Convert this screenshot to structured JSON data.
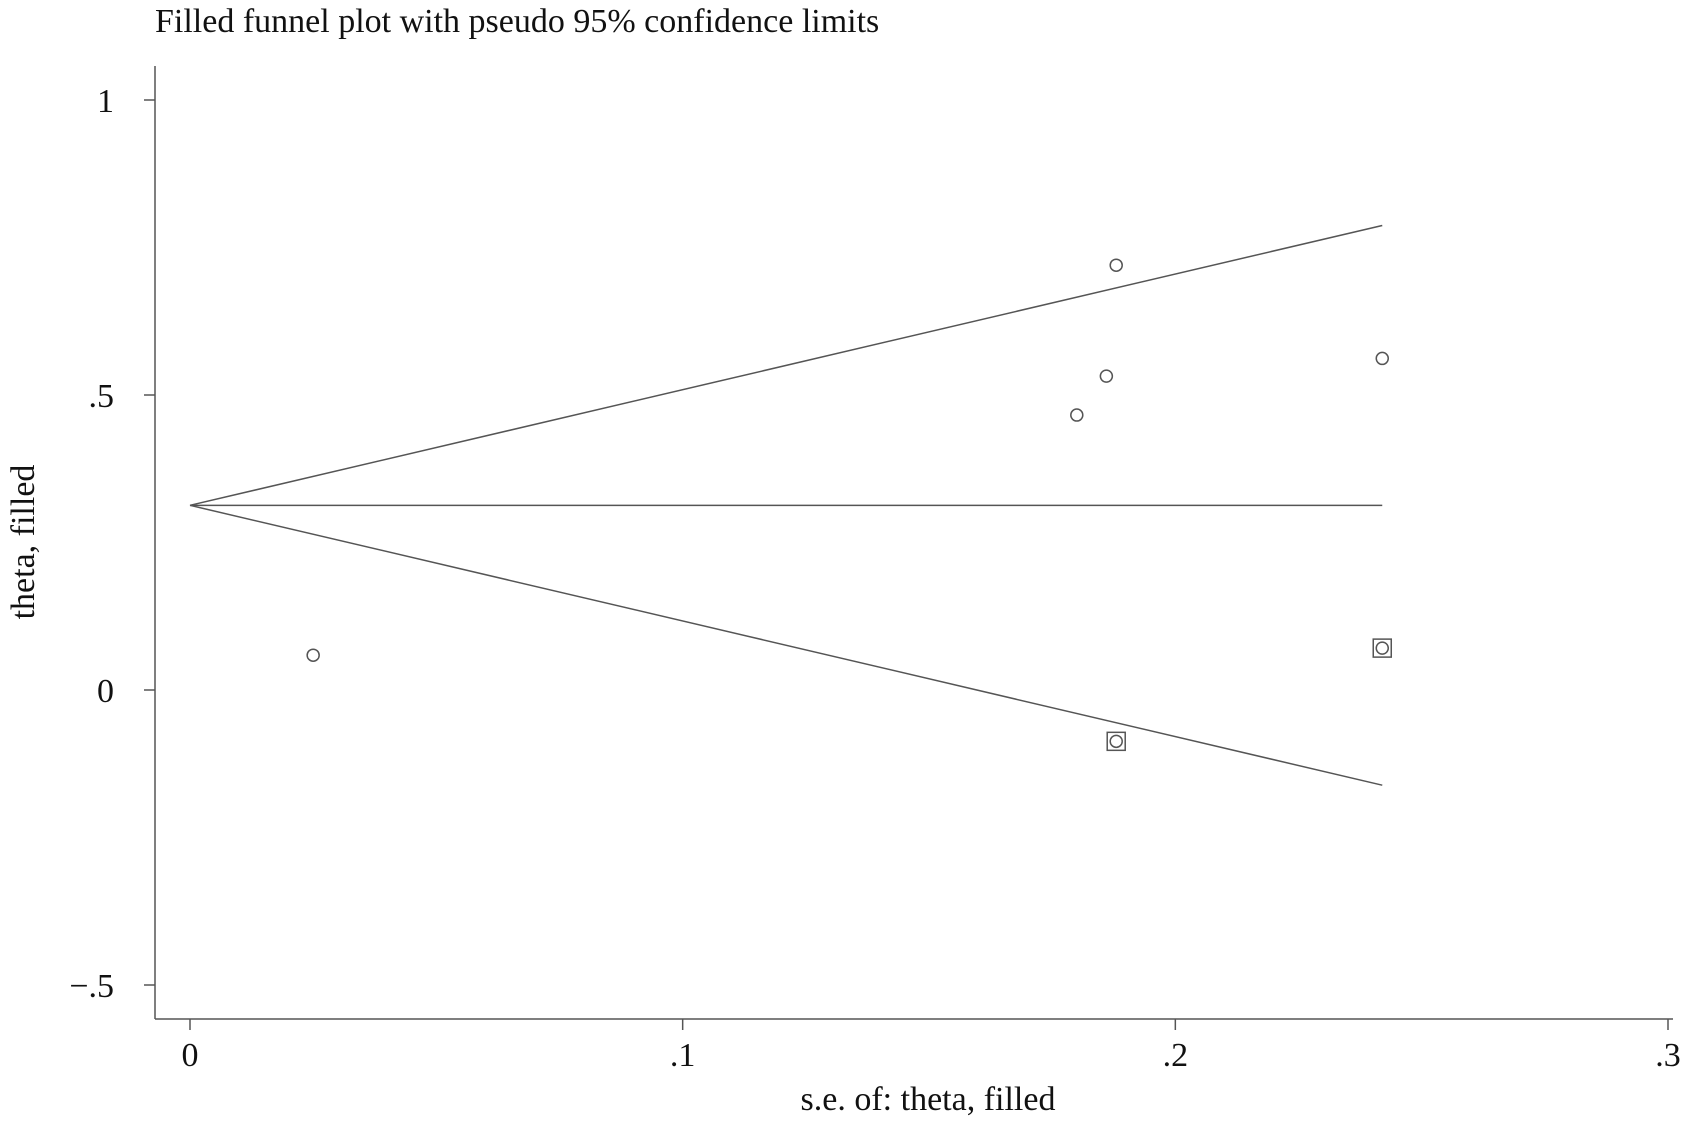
{
  "chart_data": {
    "type": "scatter",
    "title": "Filled funnel plot with pseudo 95% confidence limits",
    "xlabel": "s.e. of: theta, filled",
    "ylabel": "theta, filled",
    "xlim": [
      0,
      0.3
    ],
    "ylim": [
      -0.5,
      1
    ],
    "x_ticks": [
      {
        "value": 0,
        "label": "0"
      },
      {
        "value": 0.1,
        "label": ".1"
      },
      {
        "value": 0.2,
        "label": ".2"
      },
      {
        "value": 0.3,
        "label": ".3"
      }
    ],
    "y_ticks": [
      {
        "value": -0.5,
        "label": "−.5"
      },
      {
        "value": 0,
        "label": "0"
      },
      {
        "value": 0.5,
        "label": ".5"
      },
      {
        "value": 1,
        "label": "1"
      }
    ],
    "pooled_estimate": 0.313,
    "funnel_max_se": 0.242,
    "ci_multiplier": 1.96,
    "grid": false,
    "series": [
      {
        "marker": "circle",
        "points": [
          {
            "x": 0.025,
            "y": 0.059
          },
          {
            "x": 0.18,
            "y": 0.466
          },
          {
            "x": 0.186,
            "y": 0.532
          },
          {
            "x": 0.188,
            "y": 0.72
          },
          {
            "x": 0.242,
            "y": 0.562
          },
          {
            "x": 0.188,
            "y": -0.087
          },
          {
            "x": 0.242,
            "y": 0.071
          }
        ]
      },
      {
        "marker": "square",
        "points": [
          {
            "x": 0.188,
            "y": -0.087
          },
          {
            "x": 0.242,
            "y": 0.071
          }
        ]
      }
    ]
  }
}
